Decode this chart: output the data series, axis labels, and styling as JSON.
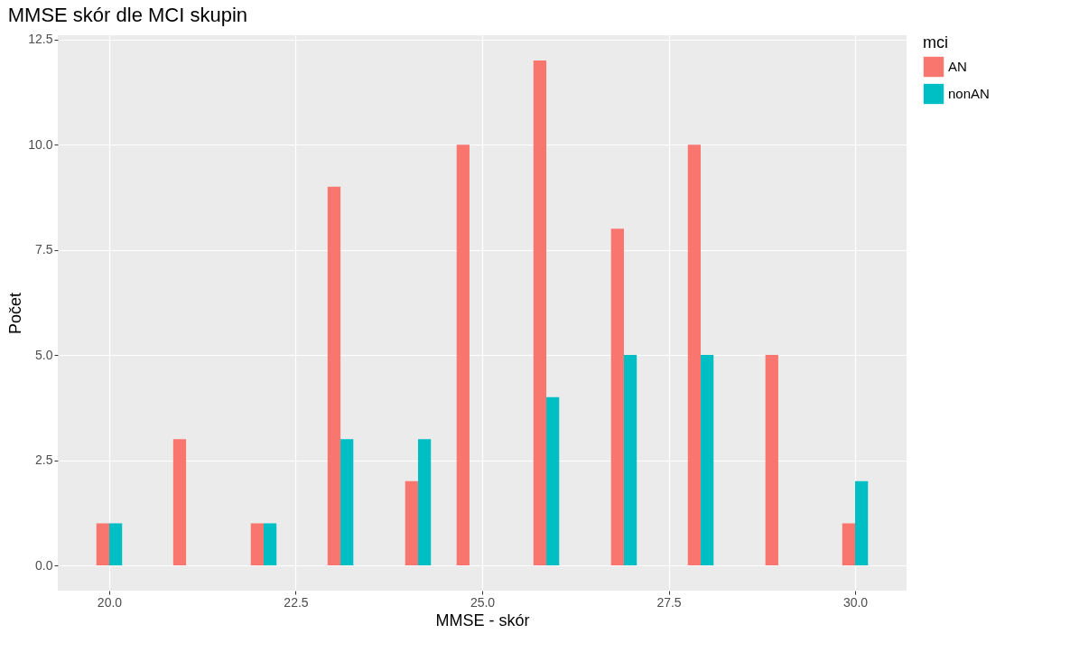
{
  "chart_data": {
    "type": "bar",
    "title": "MMSE skór dle MCI skupin",
    "xlabel": "MMSE - skór",
    "ylabel": "Počet",
    "legend_title": "mci",
    "x": [
      20,
      21.03,
      22.07,
      23.1,
      24.14,
      24.83,
      25.86,
      26.9,
      27.93,
      28.97,
      30
    ],
    "series": [
      {
        "name": "AN",
        "color": "#f8766d",
        "values": [
          1,
          3,
          1,
          9,
          2,
          10,
          12,
          8,
          10,
          5,
          1
        ]
      },
      {
        "name": "nonAN",
        "color": "#00bfc4",
        "values": [
          1,
          0,
          1,
          3,
          3,
          0,
          4,
          5,
          5,
          0,
          2
        ]
      }
    ],
    "xlim": [
      19.31,
      30.69
    ],
    "ylim": [
      -0.6,
      12.6
    ],
    "xticks": [
      {
        "value": 20,
        "label": "20.0"
      },
      {
        "value": 22.5,
        "label": "22.5"
      },
      {
        "value": 25,
        "label": "25.0"
      },
      {
        "value": 27.5,
        "label": "27.5"
      },
      {
        "value": 30,
        "label": "30.0"
      }
    ],
    "yticks": [
      {
        "value": 0,
        "label": "0.0"
      },
      {
        "value": 2.5,
        "label": "2.5"
      },
      {
        "value": 5,
        "label": "5.0"
      },
      {
        "value": 7.5,
        "label": "7.5"
      },
      {
        "value": 10,
        "label": "10.0"
      },
      {
        "value": 12.5,
        "label": "12.5"
      }
    ],
    "grid": true,
    "legend": "right"
  }
}
